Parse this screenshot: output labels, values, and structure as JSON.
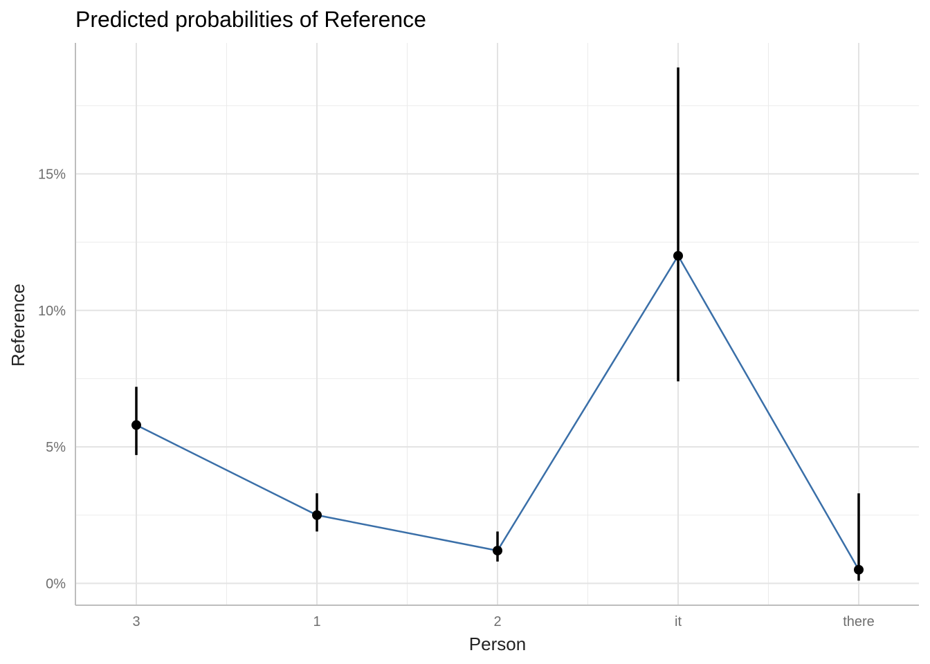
{
  "chart_data": {
    "type": "line",
    "title": "Predicted probabilities of Reference",
    "xlabel": "Person",
    "ylabel": "Reference",
    "categories": [
      "3",
      "1",
      "2",
      "it",
      "there"
    ],
    "series": [
      {
        "values": [
          0.058,
          0.025,
          0.012,
          0.12,
          0.005
        ],
        "ci_low": [
          0.047,
          0.019,
          0.008,
          0.074,
          0.001
        ],
        "ci_high": [
          0.072,
          0.033,
          0.019,
          0.189,
          0.033
        ],
        "line_color": "#3a6fa8",
        "point_color": "#000000"
      }
    ],
    "y_ticks": [
      0,
      0.05,
      0.1,
      0.15
    ],
    "y_tick_labels": [
      "0%",
      "5%",
      "10%",
      "15%"
    ],
    "ylim": [
      -0.008,
      0.198
    ],
    "grid": true,
    "legend": "none"
  }
}
